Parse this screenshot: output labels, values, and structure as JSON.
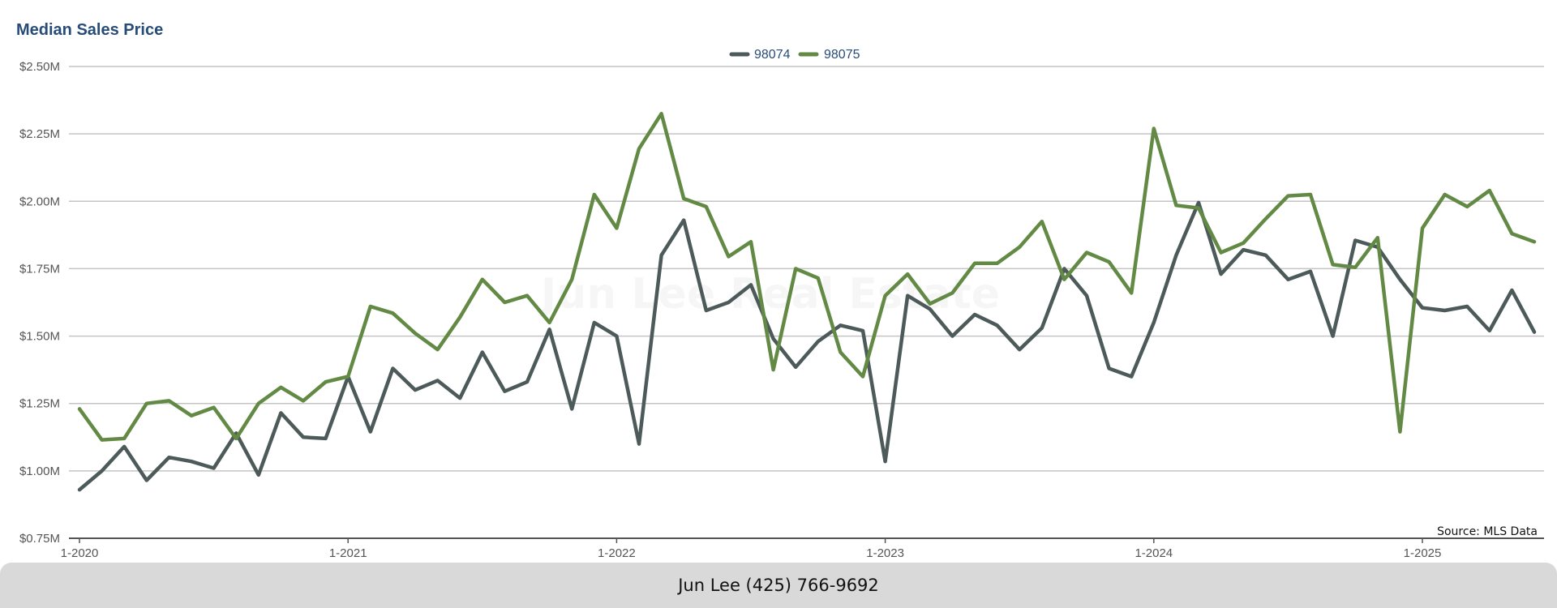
{
  "chart_data": {
    "type": "line",
    "title": "Median Sales Price",
    "xlabel": "",
    "ylabel": "",
    "ylim": [
      750000,
      2500000
    ],
    "yticks": [
      750000,
      1000000,
      1250000,
      1500000,
      1750000,
      2000000,
      2250000,
      2500000
    ],
    "ytick_labels": [
      "$0.75M",
      "$1.00M",
      "$1.25M",
      "$1.50M",
      "$1.75M",
      "$2.00M",
      "$2.25M",
      "$2.50M"
    ],
    "xtick_labels": [
      "1-2020",
      "1-2021",
      "1-2022",
      "1-2023",
      "1-2024",
      "1-2025"
    ],
    "grid": "horizontal",
    "legend_position": "top-center",
    "watermark": "Jun Lee Real Estate",
    "source": "Source: MLS Data",
    "x_start": "2020-01",
    "x_step": "1 month",
    "series": [
      {
        "name": "98074",
        "color": "#4d5a5a",
        "values": [
          930000,
          1000000,
          1090000,
          965000,
          1050000,
          1035000,
          1010000,
          1140000,
          985000,
          1215000,
          1125000,
          1120000,
          1350000,
          1145000,
          1380000,
          1300000,
          1335000,
          1270000,
          1440000,
          1295000,
          1330000,
          1525000,
          1230000,
          1550000,
          1500000,
          1100000,
          1800000,
          1930000,
          1595000,
          1625000,
          1690000,
          1490000,
          1385000,
          1480000,
          1540000,
          1520000,
          1035000,
          1650000,
          1600000,
          1500000,
          1580000,
          1540000,
          1450000,
          1530000,
          1750000,
          1650000,
          1380000,
          1350000,
          1550000,
          1800000,
          1995000,
          1730000,
          1820000,
          1800000,
          1710000,
          1740000,
          1500000,
          1855000,
          1830000,
          1710000,
          1605000,
          1595000,
          1610000,
          1520000,
          1670000,
          1515000
        ]
      },
      {
        "name": "98075",
        "color": "#638a44",
        "values": [
          1230000,
          1115000,
          1120000,
          1250000,
          1260000,
          1205000,
          1235000,
          1120000,
          1250000,
          1310000,
          1260000,
          1330000,
          1350000,
          1610000,
          1585000,
          1510000,
          1450000,
          1570000,
          1710000,
          1625000,
          1650000,
          1550000,
          1710000,
          2025000,
          1900000,
          2195000,
          2325000,
          2010000,
          1980000,
          1795000,
          1850000,
          1375000,
          1750000,
          1715000,
          1440000,
          1350000,
          1650000,
          1730000,
          1620000,
          1660000,
          1770000,
          1770000,
          1830000,
          1925000,
          1710000,
          1810000,
          1775000,
          1660000,
          2270000,
          1985000,
          1975000,
          1810000,
          1845000,
          1935000,
          2020000,
          2025000,
          1765000,
          1755000,
          1865000,
          1145000,
          1900000,
          2025000,
          1980000,
          2040000,
          1880000,
          1850000
        ]
      }
    ]
  },
  "footer": {
    "text": "Jun Lee (425) 766-9692"
  }
}
